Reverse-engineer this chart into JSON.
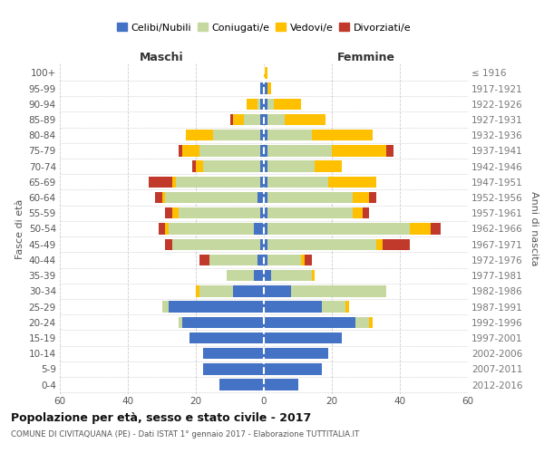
{
  "age_groups": [
    "0-4",
    "5-9",
    "10-14",
    "15-19",
    "20-24",
    "25-29",
    "30-34",
    "35-39",
    "40-44",
    "45-49",
    "50-54",
    "55-59",
    "60-64",
    "65-69",
    "70-74",
    "75-79",
    "80-84",
    "85-89",
    "90-94",
    "95-99",
    "100+"
  ],
  "birth_years": [
    "2012-2016",
    "2007-2011",
    "2002-2006",
    "1997-2001",
    "1992-1996",
    "1987-1991",
    "1982-1986",
    "1977-1981",
    "1972-1976",
    "1967-1971",
    "1962-1966",
    "1957-1961",
    "1952-1956",
    "1947-1951",
    "1942-1946",
    "1937-1941",
    "1932-1936",
    "1927-1931",
    "1922-1926",
    "1917-1921",
    "≤ 1916"
  ],
  "males": {
    "celibi": [
      13,
      18,
      18,
      22,
      24,
      28,
      9,
      3,
      2,
      1,
      3,
      1,
      2,
      1,
      1,
      1,
      1,
      1,
      1,
      1,
      0
    ],
    "coniugati": [
      0,
      0,
      0,
      0,
      1,
      2,
      10,
      8,
      14,
      26,
      25,
      24,
      27,
      25,
      17,
      18,
      14,
      5,
      1,
      0,
      0
    ],
    "vedovi": [
      0,
      0,
      0,
      0,
      0,
      0,
      1,
      0,
      0,
      0,
      1,
      2,
      1,
      1,
      2,
      5,
      8,
      3,
      3,
      0,
      0
    ],
    "divorziati": [
      0,
      0,
      0,
      0,
      0,
      0,
      0,
      0,
      3,
      2,
      2,
      2,
      2,
      7,
      1,
      1,
      0,
      1,
      0,
      0,
      0
    ]
  },
  "females": {
    "nubili": [
      10,
      17,
      19,
      23,
      27,
      17,
      8,
      2,
      1,
      1,
      1,
      1,
      1,
      1,
      1,
      1,
      1,
      1,
      1,
      1,
      0
    ],
    "coniugate": [
      0,
      0,
      0,
      0,
      4,
      7,
      28,
      12,
      10,
      32,
      42,
      25,
      25,
      18,
      14,
      19,
      13,
      5,
      2,
      0,
      0
    ],
    "vedove": [
      0,
      0,
      0,
      0,
      1,
      1,
      0,
      1,
      1,
      2,
      6,
      3,
      5,
      14,
      8,
      16,
      18,
      12,
      8,
      1,
      1
    ],
    "divorziate": [
      0,
      0,
      0,
      0,
      0,
      0,
      0,
      0,
      2,
      8,
      3,
      2,
      2,
      0,
      0,
      2,
      0,
      0,
      0,
      0,
      0
    ]
  },
  "colors": {
    "celibi": "#4472c4",
    "coniugati": "#c5d8a0",
    "vedovi": "#ffc000",
    "divorziati": "#c0392b"
  },
  "legend_labels": [
    "Celibi/Nubili",
    "Coniugati/e",
    "Vedovi/e",
    "Divorziati/e"
  ],
  "title": "Popolazione per età, sesso e stato civile - 2017",
  "subtitle": "COMUNE DI CIVITAQUANA (PE) - Dati ISTAT 1° gennaio 2017 - Elaborazione TUTTITALIA.IT",
  "xlabel_left": "Maschi",
  "xlabel_right": "Femmine",
  "ylabel_left": "Fasce di età",
  "ylabel_right": "Anni di nascita",
  "xlim": 60,
  "bg": "#ffffff",
  "grid_color": "#cccccc"
}
